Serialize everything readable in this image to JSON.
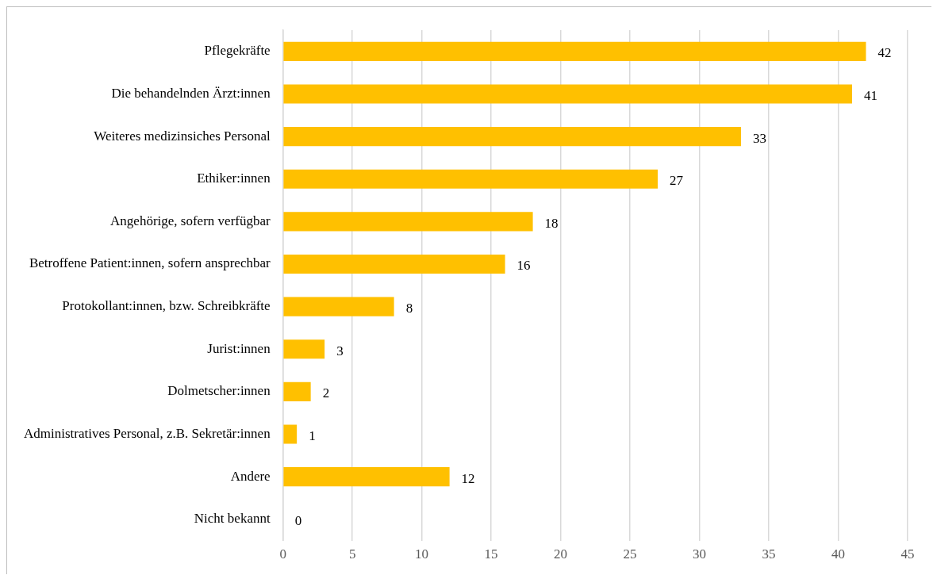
{
  "chart_data": {
    "type": "bar",
    "orientation": "horizontal",
    "categories": [
      "Pflegekräfte",
      "Die behandelnden Ärzt:innen",
      "Weiteres medizinsiches Personal",
      "Ethiker:innen",
      "Angehörige, sofern verfügbar",
      "Betroffene Patient:innen, sofern ansprechbar",
      "Protokollant:innen, bzw. Schreibkräfte",
      "Jurist:innen",
      "Dolmetscher:innen",
      "Administratives Personal, z.B. Sekretär:innen",
      "Andere",
      "Nicht bekannt"
    ],
    "values": [
      42,
      41,
      33,
      27,
      18,
      16,
      8,
      3,
      2,
      1,
      12,
      0
    ],
    "color": "#ffc000",
    "xlim": [
      0,
      45
    ],
    "xticks": [
      0,
      5,
      10,
      15,
      20,
      25,
      30,
      35,
      40,
      45
    ],
    "grid": "x",
    "legend": false,
    "data_labels": true
  }
}
